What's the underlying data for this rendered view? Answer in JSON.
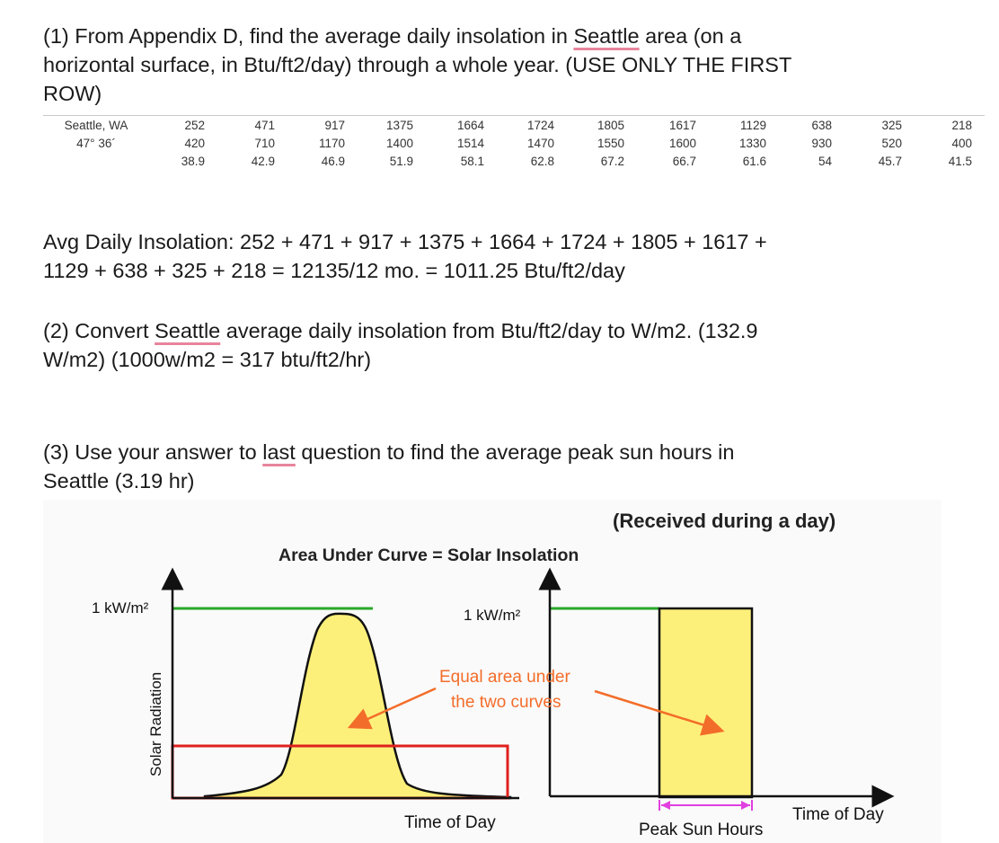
{
  "q1": {
    "line1_pre": "(1) From Appendix D, find the average daily insolation in ",
    "city": "Seattle",
    "line1_post": " area (on a",
    "line2": "horizontal surface, in Btu/ft2/day) through a whole year. (USE ONLY THE FIRST",
    "line3": "ROW)"
  },
  "table": {
    "location_line1": "Seattle, WA",
    "location_line2": "47° 36´",
    "rows": [
      [
        "252",
        "471",
        "917",
        "1375",
        "1664",
        "1724",
        "1805",
        "1617",
        "1129",
        "638",
        "325",
        "218"
      ],
      [
        "420",
        "710",
        "1170",
        "1400",
        "1514",
        "1470",
        "1550",
        "1600",
        "1330",
        "930",
        "520",
        "400"
      ],
      [
        "38.9",
        "42.9",
        "46.9",
        "51.9",
        "58.1",
        "62.8",
        "67.2",
        "66.7",
        "61.6",
        "54",
        "45.7",
        "41.5"
      ]
    ]
  },
  "answer1": {
    "line1": "Avg Daily Insolation: 252 + 471 + 917 + 1375 + 1664 + 1724 + 1805 + 1617 +",
    "line2": "1129 + 638 + 325 + 218 = 12135/12 mo. = 1011.25 Btu/ft2/day"
  },
  "q2": {
    "pre": "(2) Convert ",
    "city": "Seattle",
    "post": " average daily insolation from Btu/ft2/day to W/m2.  (132.9",
    "line2": "W/m2) (1000w/m2 = 317 btu/ft2/hr)"
  },
  "q3": {
    "pre": "(3) Use your answer to ",
    "word": "last",
    "post": " question to find the average peak sun hours in",
    "line2": "Seattle (3.19 hr)"
  },
  "figure": {
    "received": "(Received during a day)",
    "title": "Area Under Curve = Solar Insolation",
    "left_label": "1 kW/m²",
    "right_label": "1 kW/m²",
    "ylabel": "Solar Radiation",
    "equal1": "Equal area under",
    "equal2": "the two curves",
    "xlabel_left": "Time of Day",
    "xlabel_right": "Time of Day",
    "peak": "Peak Sun Hours",
    "colors": {
      "curve_fill": "#fdf07a",
      "red": "#e0201c",
      "green": "#2aa82a",
      "arrow": "#f36d2a",
      "magenta": "#e040e0"
    }
  }
}
